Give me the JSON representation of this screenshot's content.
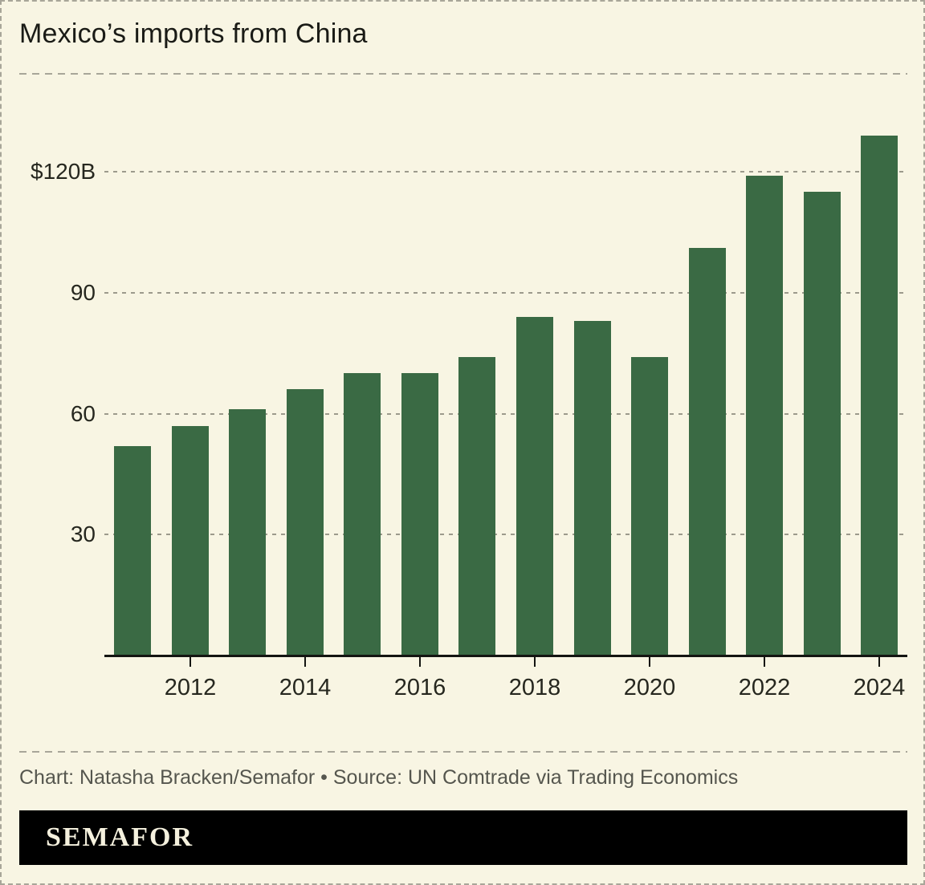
{
  "header": {
    "title": "Mexico’s imports from China"
  },
  "footer": {
    "credit": "Chart: Natasha Bracken/Semafor • Source: UN Comtrade via Trading Economics",
    "logo_text": "SEMAFOR"
  },
  "colors": {
    "background": "#f8f5e3",
    "border": "#a8a699",
    "separator": "#a8a699",
    "gridline": "#9c9a8c",
    "bar": "#3a6a44",
    "axis": "#141511",
    "title_text": "#1a1b16",
    "axis_label_text": "#26271f",
    "credit_text": "#55564e",
    "logo_bg": "#000000",
    "logo_text": "#f5f1de"
  },
  "chart_data": {
    "type": "bar",
    "title": "Mexico’s imports from China",
    "unit": "USD billions",
    "categories": [
      2011,
      2012,
      2013,
      2014,
      2015,
      2016,
      2017,
      2018,
      2019,
      2020,
      2021,
      2022,
      2023,
      2024
    ],
    "values": [
      52,
      57,
      61,
      66,
      70,
      70,
      74,
      84,
      83,
      74,
      101,
      119,
      115,
      129
    ],
    "ylim": [
      0,
      135
    ],
    "yticks": [
      {
        "value": 30,
        "label": "30"
      },
      {
        "value": 60,
        "label": "60"
      },
      {
        "value": 90,
        "label": "90"
      },
      {
        "value": 120,
        "label": "$120B"
      }
    ],
    "xtick_years": [
      2012,
      2014,
      2016,
      2018,
      2020,
      2022,
      2024
    ],
    "grid": "horizontal-dashed",
    "legend": "none",
    "bar_color": "#3a6a44"
  }
}
